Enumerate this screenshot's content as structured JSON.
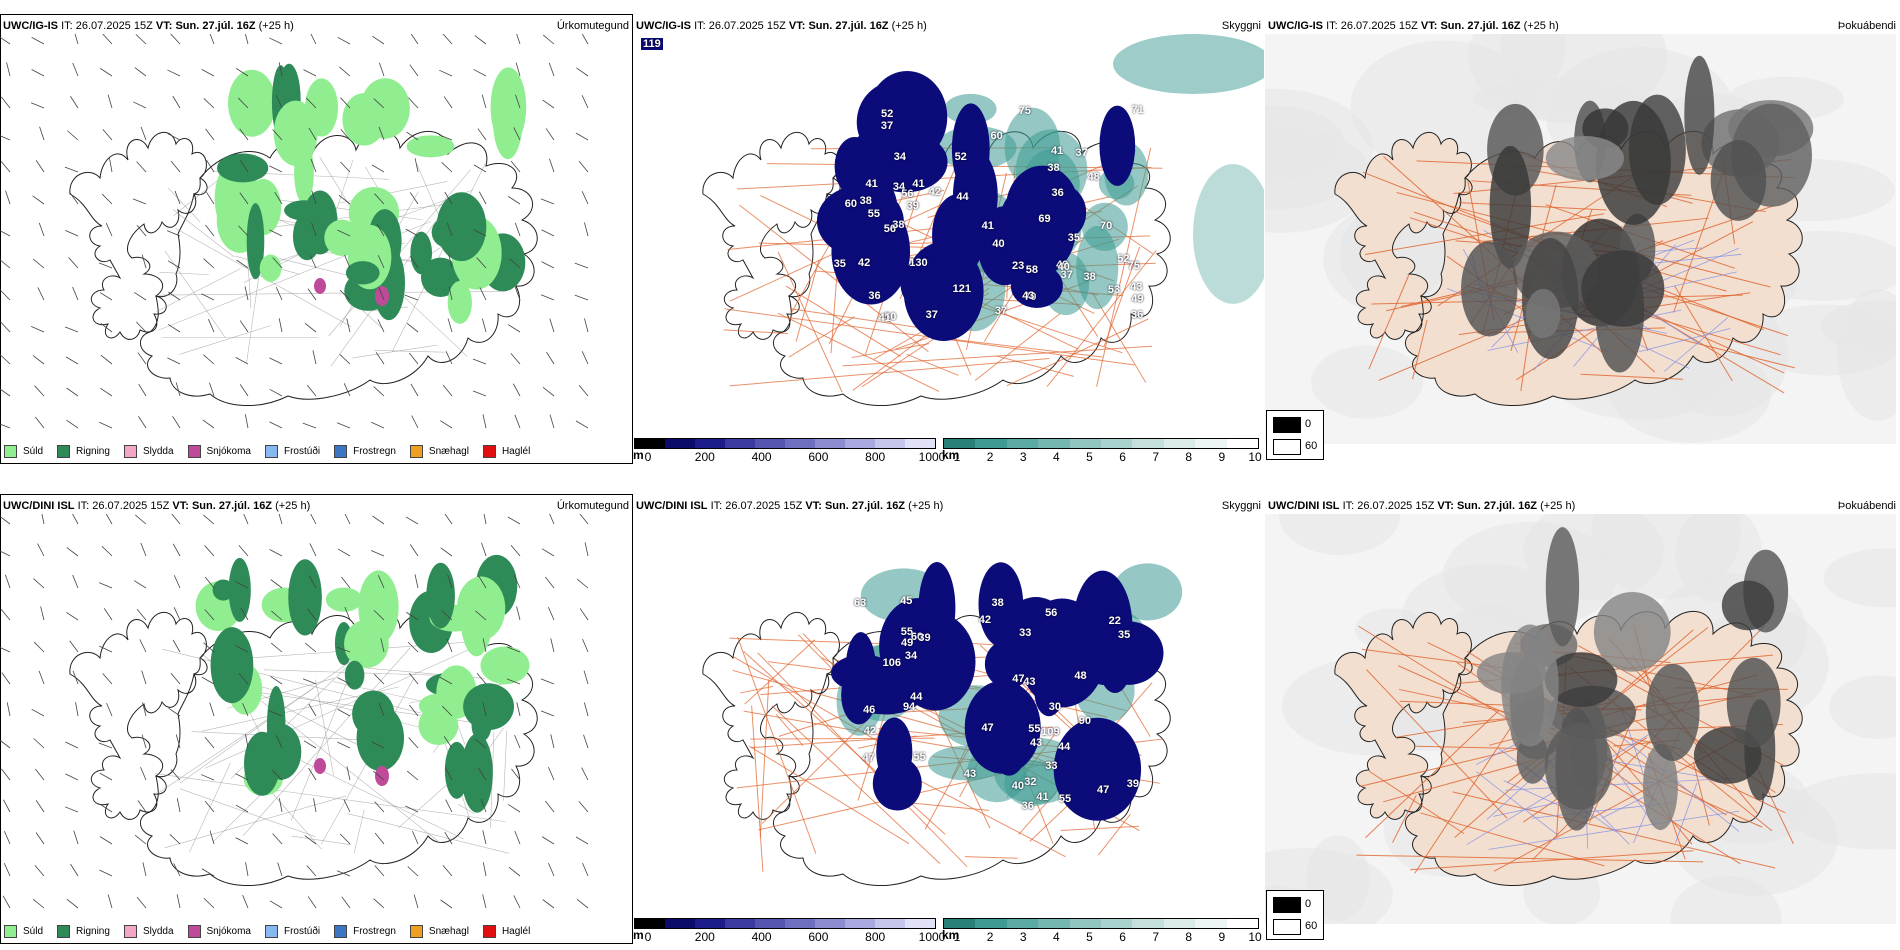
{
  "colors": {
    "suld": "#90ee90",
    "rigning": "#2e8b57",
    "slydda": "#f4a6c8",
    "snjokoma": "#c04a9a",
    "frostudi": "#87b8f0",
    "frostregn": "#3a76c4",
    "snaehagl": "#f0a020",
    "haglel": "#e01010",
    "cloud_dark": "#0b0b7a",
    "fog_teal": "#3e9b94",
    "land_tan": "#f2dfd0",
    "roads": "#e0622a"
  },
  "rows": [
    {
      "model": "UWC/IG-IS",
      "it_label": "IT:",
      "it_value": "26.07.2025 15Z",
      "vt_label": "VT:",
      "vt_value": "Sun. 27.júl. 16Z",
      "lead": "(+25 h)",
      "corner_value": "119",
      "visibility_labels": [
        "37",
        "37",
        "42",
        "35",
        "41",
        "70",
        "56",
        "37",
        "38",
        "36",
        "53",
        "39",
        "37",
        "36",
        "34",
        "52",
        "37",
        "60",
        "49",
        "43",
        "38",
        "40",
        "41",
        "69",
        "58",
        "49",
        "52",
        "44",
        "75",
        "48",
        "50",
        "52",
        "42",
        "130",
        "23",
        "38",
        "71",
        "70",
        "60",
        "41",
        "75",
        "121",
        "35",
        "55",
        "41",
        "41",
        "38",
        "36",
        "34",
        "40",
        "43",
        "56"
      ]
    },
    {
      "model": "UWC/DINI ISL",
      "it_label": "IT:",
      "it_value": "26.07.2025 15Z",
      "vt_label": "VT:",
      "vt_value": "Sun. 27.júl. 16Z",
      "lead": "(+25 h)",
      "corner_value": "",
      "visibility_labels": [
        "41",
        "46",
        "33",
        "47",
        "56",
        "45",
        "36",
        "32",
        "40",
        "44",
        "55",
        "63",
        "47",
        "48",
        "39",
        "42",
        "33",
        "43",
        "55",
        "55",
        "43",
        "94",
        "90",
        "55",
        "60",
        "109",
        "43",
        "106",
        "49",
        "30",
        "39",
        "44",
        "34",
        "35",
        "47",
        "38",
        "47",
        "42",
        "22"
      ]
    }
  ],
  "panel_titles": {
    "precip": "Úrkomutegund",
    "visibility": "Skyggni",
    "cloud": "Þokuábendi"
  },
  "precip_legend": [
    "Súld",
    "Rigning",
    "Slydda",
    "Snjókoma",
    "Frostúði",
    "Frostregn",
    "Snæhagl",
    "Haglél"
  ],
  "height_bar": {
    "unit": "m",
    "ticks": [
      "0",
      "200",
      "400",
      "600",
      "800",
      "1000"
    ]
  },
  "vis_bar": {
    "unit": "km",
    "ticks": [
      "1",
      "2",
      "3",
      "4",
      "5",
      "6",
      "7",
      "8",
      "9",
      "10"
    ]
  },
  "cloud_legend": {
    "min": "0",
    "max": "60"
  }
}
